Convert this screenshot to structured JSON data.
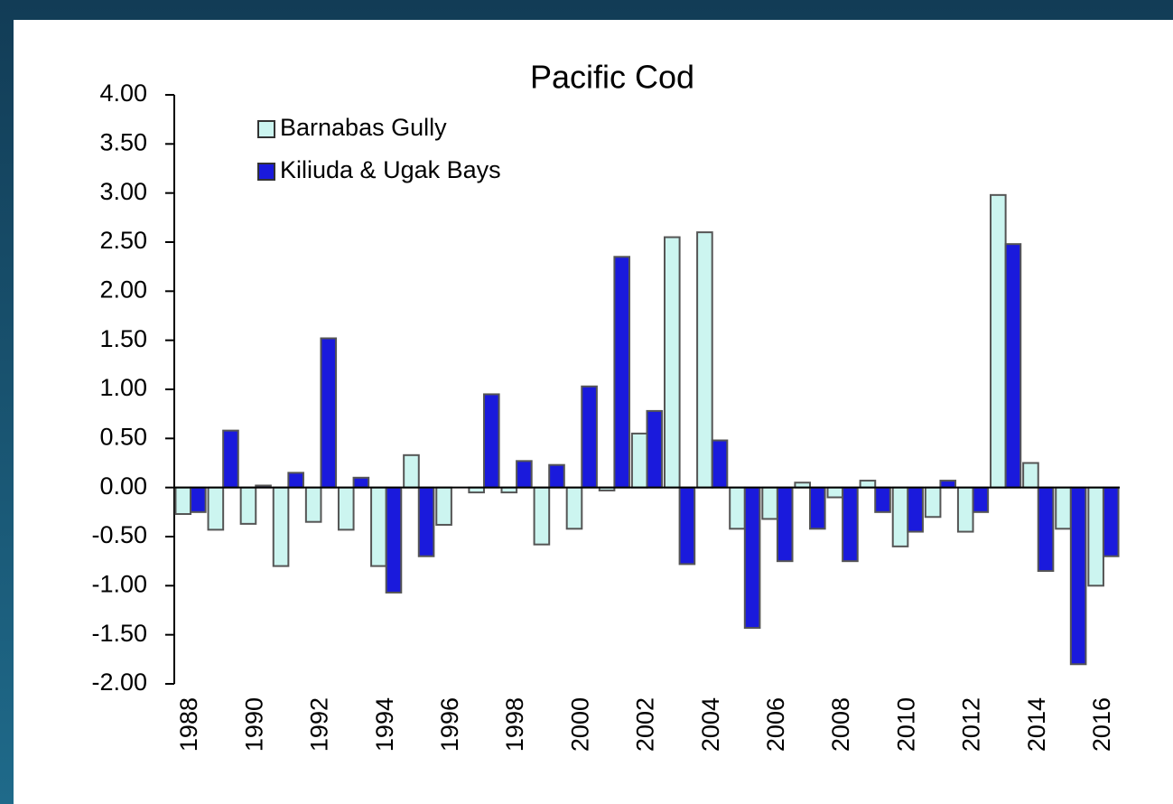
{
  "chart_data": {
    "type": "bar",
    "title": "Pacific Cod",
    "categories": [
      "1988",
      null,
      "1990",
      null,
      "1992",
      null,
      "1994",
      null,
      "1996",
      null,
      "1998",
      null,
      "2000",
      null,
      "2002",
      null,
      "2004",
      null,
      "2006",
      null,
      "2008",
      null,
      "2010",
      null,
      "2012",
      null,
      "2014",
      null,
      "2016"
    ],
    "series": [
      {
        "name": "Barnabas Gully",
        "color": "#ccf5f0",
        "values": [
          -0.27,
          -0.43,
          -0.37,
          -0.8,
          -0.35,
          -0.43,
          -0.8,
          0.33,
          -0.38,
          -0.05,
          -0.05,
          -0.58,
          -0.42,
          -0.03,
          0.55,
          2.55,
          2.6,
          -0.42,
          -0.32,
          0.05,
          -0.1,
          0.07,
          -0.6,
          -0.3,
          -0.45,
          2.98,
          0.25,
          -0.42,
          -1.0
        ]
      },
      {
        "name": "Kiliuda & Ugak Bays",
        "color": "#1a1adc",
        "values": [
          -0.25,
          0.58,
          0.02,
          0.15,
          1.52,
          0.1,
          -1.07,
          -0.7,
          0.0,
          0.95,
          0.27,
          0.23,
          1.03,
          2.35,
          0.78,
          -0.78,
          0.48,
          -1.43,
          -0.75,
          -0.42,
          -0.75,
          -0.25,
          -0.45,
          0.07,
          -0.25,
          2.48,
          -0.85,
          -1.8,
          -0.7
        ]
      }
    ],
    "ylim": [
      -2,
      4
    ],
    "yticks": [
      {
        "value": 4,
        "label": "4.00"
      },
      {
        "value": 3.5,
        "label": "3.50"
      },
      {
        "value": 3,
        "label": "3.00"
      },
      {
        "value": 2.5,
        "label": "2.50"
      },
      {
        "value": 2,
        "label": "2.00"
      },
      {
        "value": 1.5,
        "label": "1.50"
      },
      {
        "value": 1,
        "label": "1.00"
      },
      {
        "value": 0.5,
        "label": "0.50"
      },
      {
        "value": 0,
        "label": "0.00"
      },
      {
        "value": -0.5,
        "label": "-0.50"
      },
      {
        "value": -1,
        "label": "-1.00"
      },
      {
        "value": -1.5,
        "label": "-1.50"
      },
      {
        "value": -2,
        "label": "-2.00"
      }
    ],
    "legend": "upper left",
    "grid": false
  }
}
